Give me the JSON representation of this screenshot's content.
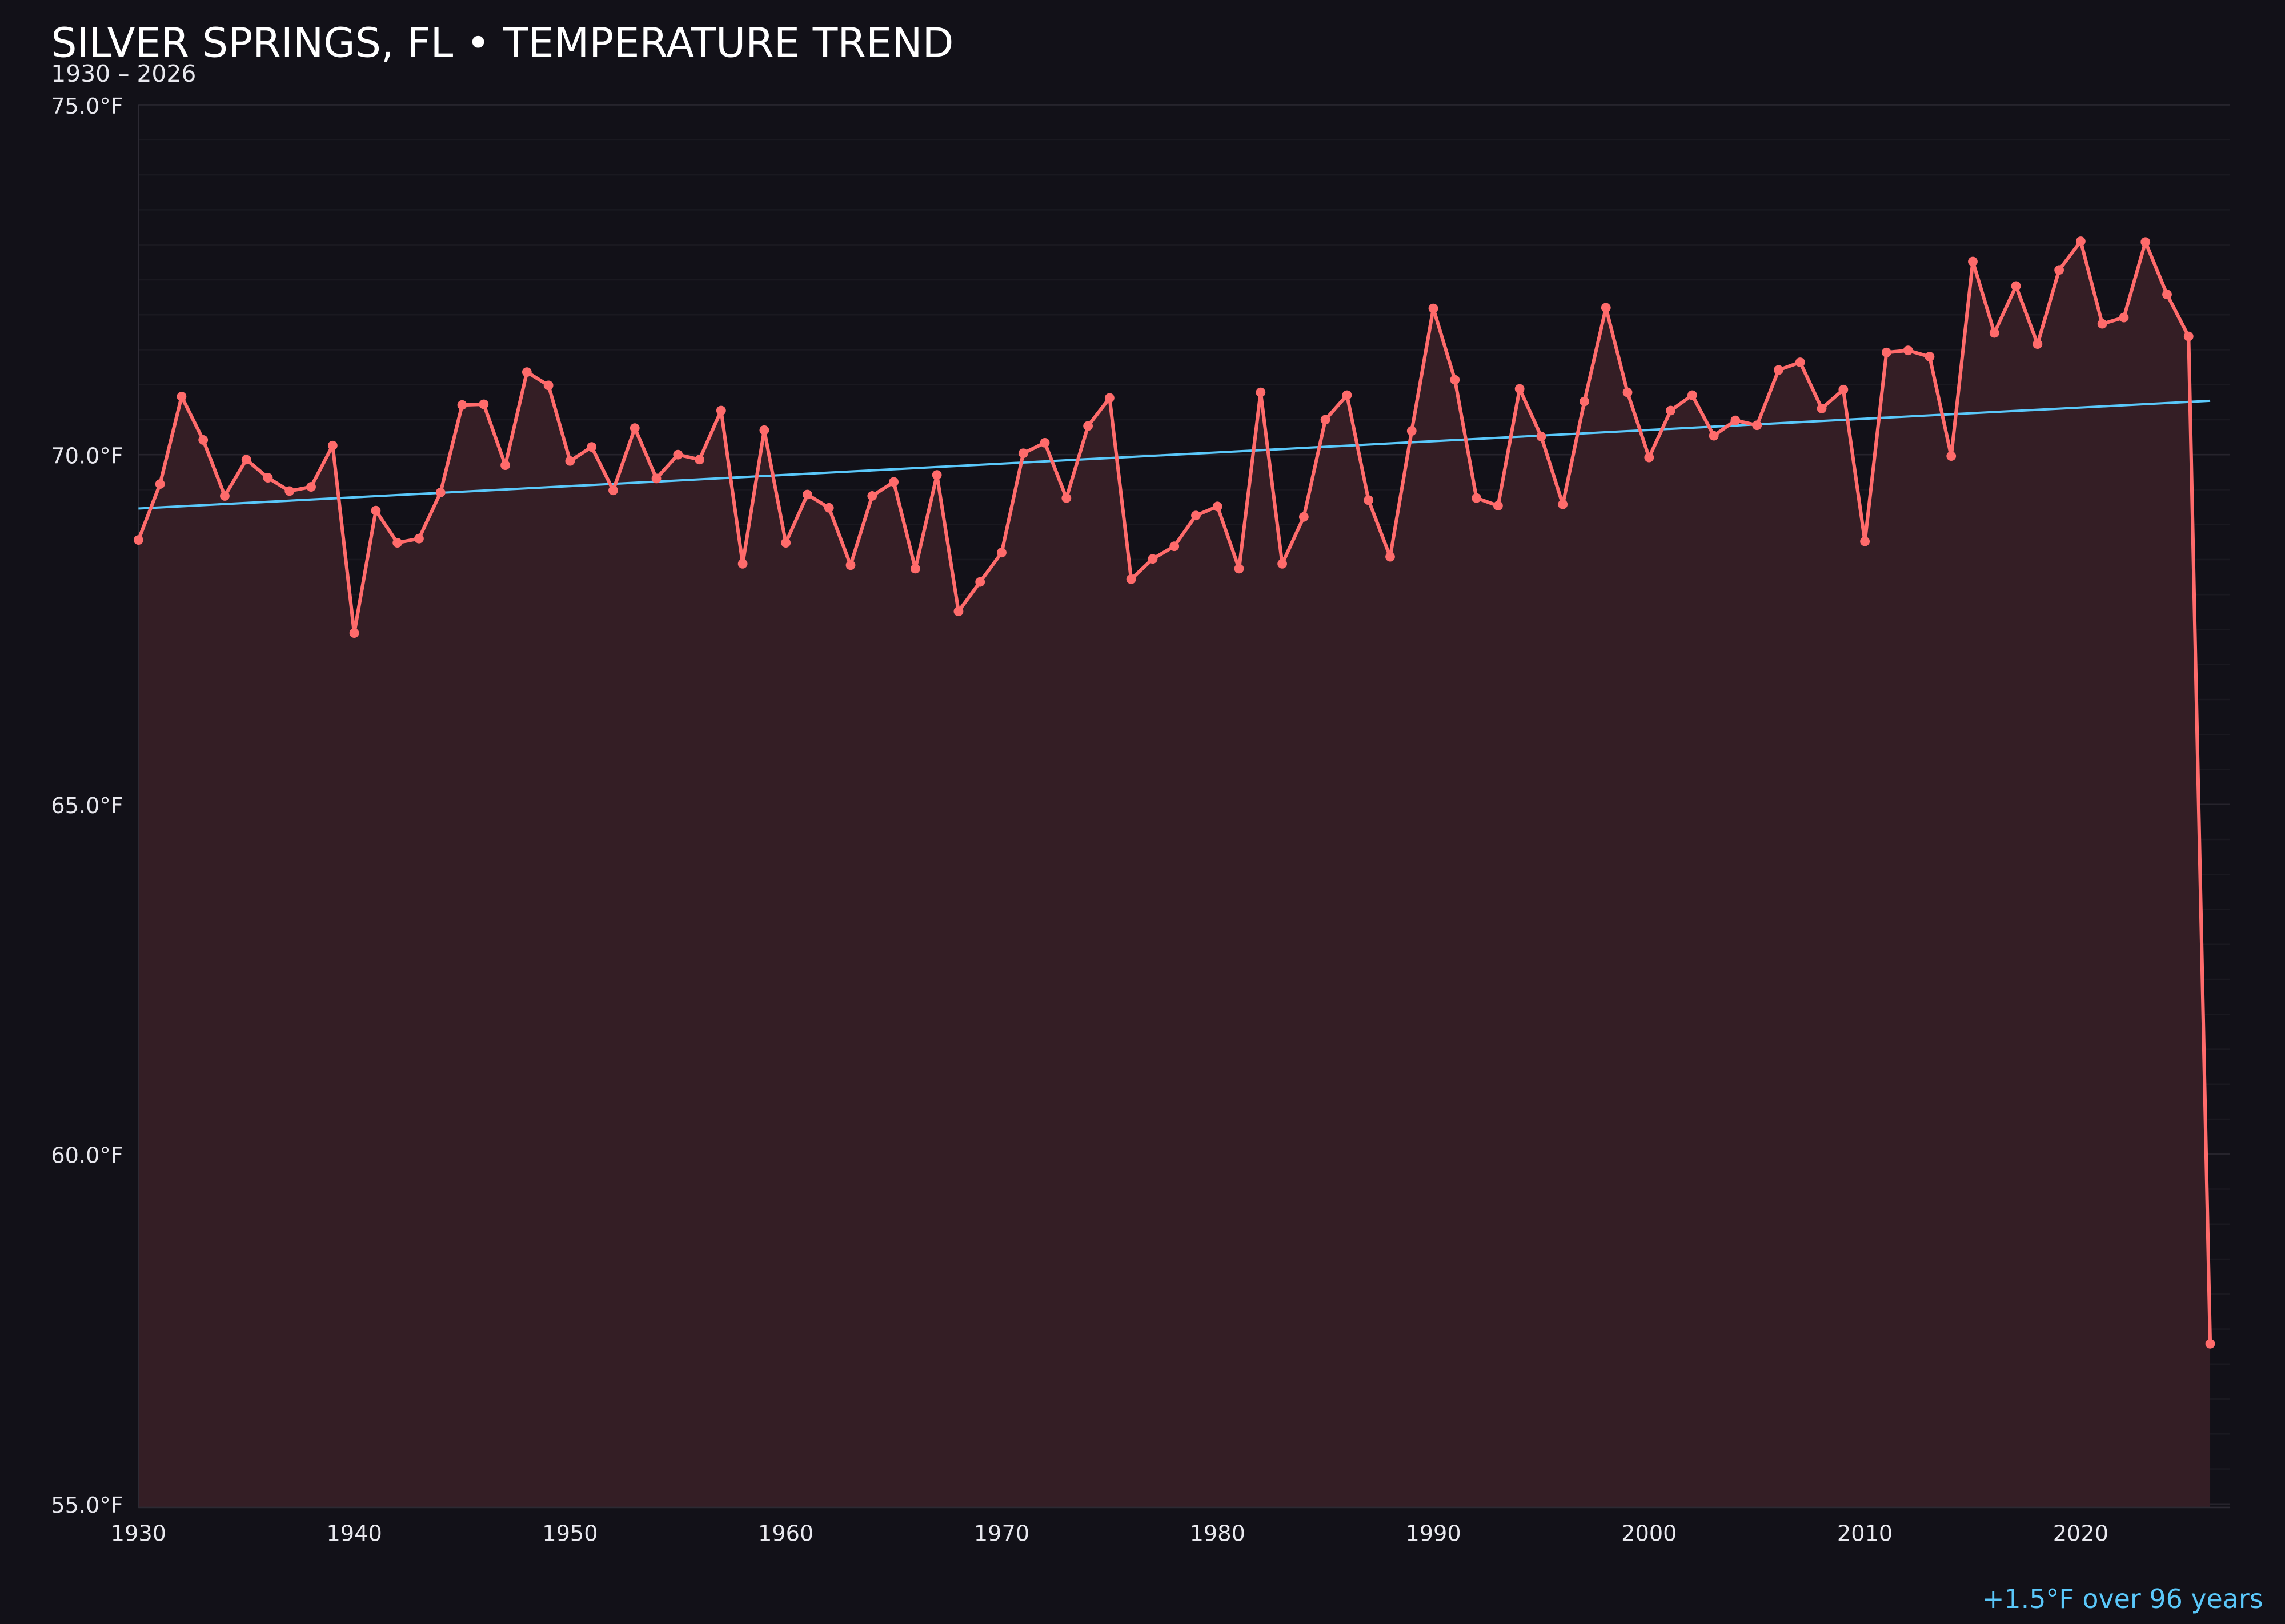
{
  "chart_data": {
    "type": "line",
    "title": "SILVER SPRINGS, FL • TEMPERATURE TREND",
    "subtitle": "1930 – 2026",
    "xlabel": "",
    "ylabel": "",
    "xlim": [
      1930,
      2026.9
    ],
    "ylim": [
      54.95,
      75.0
    ],
    "x_ticks": [
      1930,
      1940,
      1950,
      1960,
      1970,
      1980,
      1990,
      2000,
      2010,
      2020
    ],
    "y_ticks": [
      55,
      60,
      65,
      70,
      75
    ],
    "y_tick_labels": [
      "55.0°F",
      "60.0°F",
      "65.0°F",
      "70.0°F",
      "75.0°F"
    ],
    "grid": "horizontal",
    "x": [
      1930,
      1931,
      1932,
      1933,
      1934,
      1935,
      1936,
      1937,
      1938,
      1939,
      1940,
      1941,
      1942,
      1943,
      1944,
      1945,
      1946,
      1947,
      1948,
      1949,
      1950,
      1951,
      1952,
      1953,
      1954,
      1955,
      1956,
      1957,
      1958,
      1959,
      1960,
      1961,
      1962,
      1963,
      1964,
      1965,
      1966,
      1967,
      1968,
      1969,
      1970,
      1971,
      1972,
      1973,
      1974,
      1975,
      1976,
      1977,
      1978,
      1979,
      1980,
      1981,
      1982,
      1983,
      1984,
      1985,
      1986,
      1987,
      1988,
      1989,
      1990,
      1991,
      1992,
      1993,
      1994,
      1995,
      1996,
      1997,
      1998,
      1999,
      2000,
      2001,
      2002,
      2003,
      2004,
      2005,
      2006,
      2007,
      2008,
      2009,
      2010,
      2011,
      2012,
      2013,
      2014,
      2015,
      2016,
      2017,
      2018,
      2019,
      2020,
      2021,
      2022,
      2023,
      2024,
      2025,
      2026
    ],
    "series": [
      {
        "values": [
          68.78,
          69.58,
          70.83,
          70.21,
          69.41,
          69.93,
          69.67,
          69.48,
          69.54,
          70.13,
          67.45,
          69.2,
          68.74,
          68.8,
          69.46,
          70.71,
          70.72,
          69.85,
          71.18,
          70.99,
          69.91,
          70.11,
          69.49,
          70.38,
          69.66,
          70.0,
          69.93,
          70.63,
          68.44,
          70.35,
          68.74,
          69.43,
          69.24,
          68.42,
          69.41,
          69.61,
          68.37,
          69.71,
          67.76,
          68.18,
          68.6,
          70.02,
          70.17,
          69.38,
          70.41,
          70.81,
          68.22,
          68.51,
          68.69,
          69.13,
          69.26,
          68.37,
          70.89,
          68.44,
          69.11,
          70.5,
          70.85,
          69.35,
          68.54,
          70.34,
          72.09,
          71.07,
          69.38,
          69.27,
          70.94,
          70.26,
          69.29,
          70.76,
          72.1,
          70.89,
          69.96,
          70.63,
          70.85,
          70.27,
          70.49,
          70.42,
          71.21,
          71.32,
          70.66,
          70.93,
          68.76,
          71.46,
          71.49,
          71.4,
          69.98,
          72.76,
          71.74,
          72.41,
          71.58,
          72.64,
          73.05,
          71.87,
          71.96,
          73.04,
          72.29,
          71.69,
          57.29
        ],
        "color": "#ff6b6b"
      }
    ],
    "trend": {
      "x": [
        1930,
        2026
      ],
      "y": [
        69.23,
        70.77
      ],
      "color": "#5ac8fa"
    },
    "fill_color": "#341e25",
    "annotation": "+1.5°F over 96 years"
  }
}
